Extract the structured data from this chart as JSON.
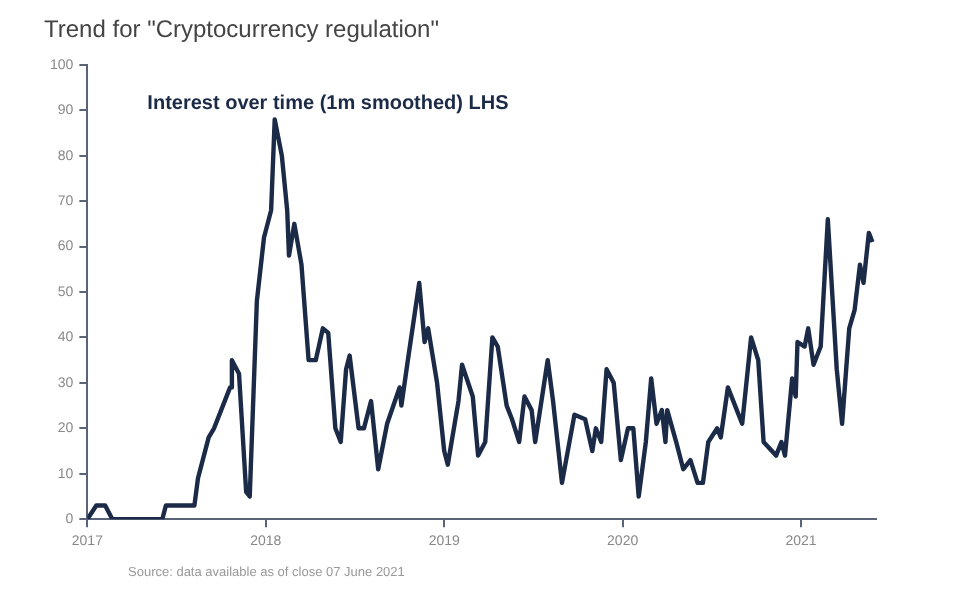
{
  "chart_data": {
    "type": "line",
    "title": "Trend for \"Cryptocurrency regulation\"",
    "annotations": [
      "Source: data available as of close 07 June 2021"
    ],
    "xlim": [
      2017,
      2021.42
    ],
    "xticks": [
      2017,
      2018,
      2019,
      2020,
      2021
    ],
    "ylim": [
      0,
      100
    ],
    "yticks": [
      0,
      10,
      20,
      30,
      40,
      50,
      60,
      70,
      80,
      90,
      100
    ],
    "grid": false,
    "legend": false,
    "marker": "none",
    "line_style": "solid",
    "series": [
      {
        "name": "Interest over time (1m smoothed) LHS",
        "color": "#1b2a47",
        "x": [
          2017.0,
          2017.05,
          2017.1,
          2017.14,
          2017.42,
          2017.44,
          2017.6,
          2017.62,
          2017.68,
          2017.71,
          2017.75,
          2017.8,
          2017.81,
          2017.85,
          2017.89,
          2017.91,
          2017.95,
          2017.99,
          2018.03,
          2018.05,
          2018.09,
          2018.12,
          2018.13,
          2018.16,
          2018.2,
          2018.24,
          2018.28,
          2018.32,
          2018.35,
          2018.39,
          2018.42,
          2018.45,
          2018.47,
          2018.52,
          2018.55,
          2018.59,
          2018.63,
          2018.68,
          2018.75,
          2018.76,
          2018.8,
          2018.86,
          2018.89,
          2018.91,
          2018.96,
          2019.0,
          2019.02,
          2019.08,
          2019.1,
          2019.16,
          2019.19,
          2019.23,
          2019.27,
          2019.3,
          2019.35,
          2019.38,
          2019.42,
          2019.45,
          2019.49,
          2019.51,
          2019.58,
          2019.61,
          2019.66,
          2019.73,
          2019.79,
          2019.83,
          2019.85,
          2019.88,
          2019.91,
          2019.95,
          2019.99,
          2020.03,
          2020.06,
          2020.09,
          2020.13,
          2020.16,
          2020.19,
          2020.22,
          2020.24,
          2020.25,
          2020.3,
          2020.34,
          2020.38,
          2020.42,
          2020.45,
          2020.48,
          2020.53,
          2020.55,
          2020.59,
          2020.64,
          2020.67,
          2020.72,
          2020.76,
          2020.79,
          2020.86,
          2020.89,
          2020.91,
          2020.95,
          2020.97,
          2020.98,
          2021.02,
          2021.04,
          2021.07,
          2021.11,
          2021.15,
          2021.2,
          2021.23,
          2021.27,
          2021.3,
          2021.33,
          2021.35,
          2021.38,
          2021.4
        ],
        "values": [
          0,
          3,
          3,
          0,
          0,
          3,
          3,
          9,
          18,
          20,
          24,
          29,
          35,
          32,
          6,
          5,
          48,
          62,
          68,
          88,
          80,
          68,
          58,
          65,
          56,
          35,
          35,
          42,
          41,
          20,
          17,
          33,
          36,
          20,
          20,
          26,
          11,
          21,
          29,
          25,
          36,
          52,
          39,
          42,
          30,
          15,
          12,
          26,
          34,
          27,
          14,
          17,
          40,
          38,
          25,
          22,
          17,
          27,
          24,
          17,
          35,
          26,
          8,
          23,
          22,
          15,
          20,
          17,
          33,
          30,
          13,
          20,
          20,
          5,
          17,
          31,
          21,
          24,
          17,
          24,
          17,
          11,
          13,
          8,
          8,
          17,
          20,
          18,
          29,
          24,
          21,
          40,
          35,
          17,
          14,
          17,
          14,
          31,
          27,
          39,
          38,
          42,
          34,
          38,
          66,
          33,
          21,
          42,
          46,
          56,
          52,
          63,
          61
        ]
      }
    ]
  }
}
